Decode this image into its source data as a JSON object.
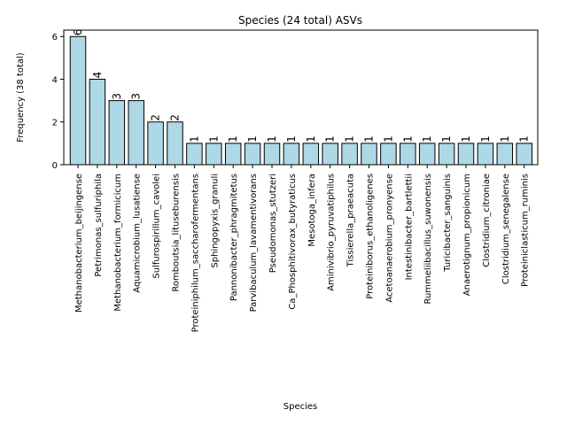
{
  "chart_data": {
    "type": "bar",
    "title": "Species (24 total) ASVs",
    "xlabel": "Species",
    "ylabel": "Frequency (38 total)",
    "ylim": [
      0,
      6.3
    ],
    "yticks": [
      0,
      2,
      4,
      6
    ],
    "grid": false,
    "bar_color": "#add8e6",
    "edge_color": "#000000",
    "categories": [
      "Methanobacterium_beijingense",
      "Petrimonas_sulfuriphila",
      "Methanobacterium_formicicum",
      "Aquamicrobium_lusatiense",
      "Sulfurospirillum_cavolei",
      "Romboutsia_lituseburensis",
      "Proteiniphilum_saccharofermentans",
      "Sphingopyxis_granuli",
      "Pannonibacter_phragmitetus",
      "Parvibaculum_lavamentivorans",
      "Pseudomonas_stutzeri",
      "Ca_Phosphitivorax_butyraticus",
      "Mesotoga_infera",
      "Aminivibrio_pyruvatiphilus",
      "Tissierella_praeacuta",
      "Proteiniborus_ethanoligenes",
      "Acetoanaerobium_pronyense",
      "Intestinibacter_bartlettii",
      "Rummeliibacillus_suwonensis",
      "Turicibacter_sanguinis",
      "Anaerotignum_propionicum",
      "Clostridium_citroniae",
      "Clostridium_senegalense",
      "Proteiniclasticum_ruminis"
    ],
    "values": [
      6,
      4,
      3,
      3,
      2,
      2,
      1,
      1,
      1,
      1,
      1,
      1,
      1,
      1,
      1,
      1,
      1,
      1,
      1,
      1,
      1,
      1,
      1,
      1
    ]
  }
}
